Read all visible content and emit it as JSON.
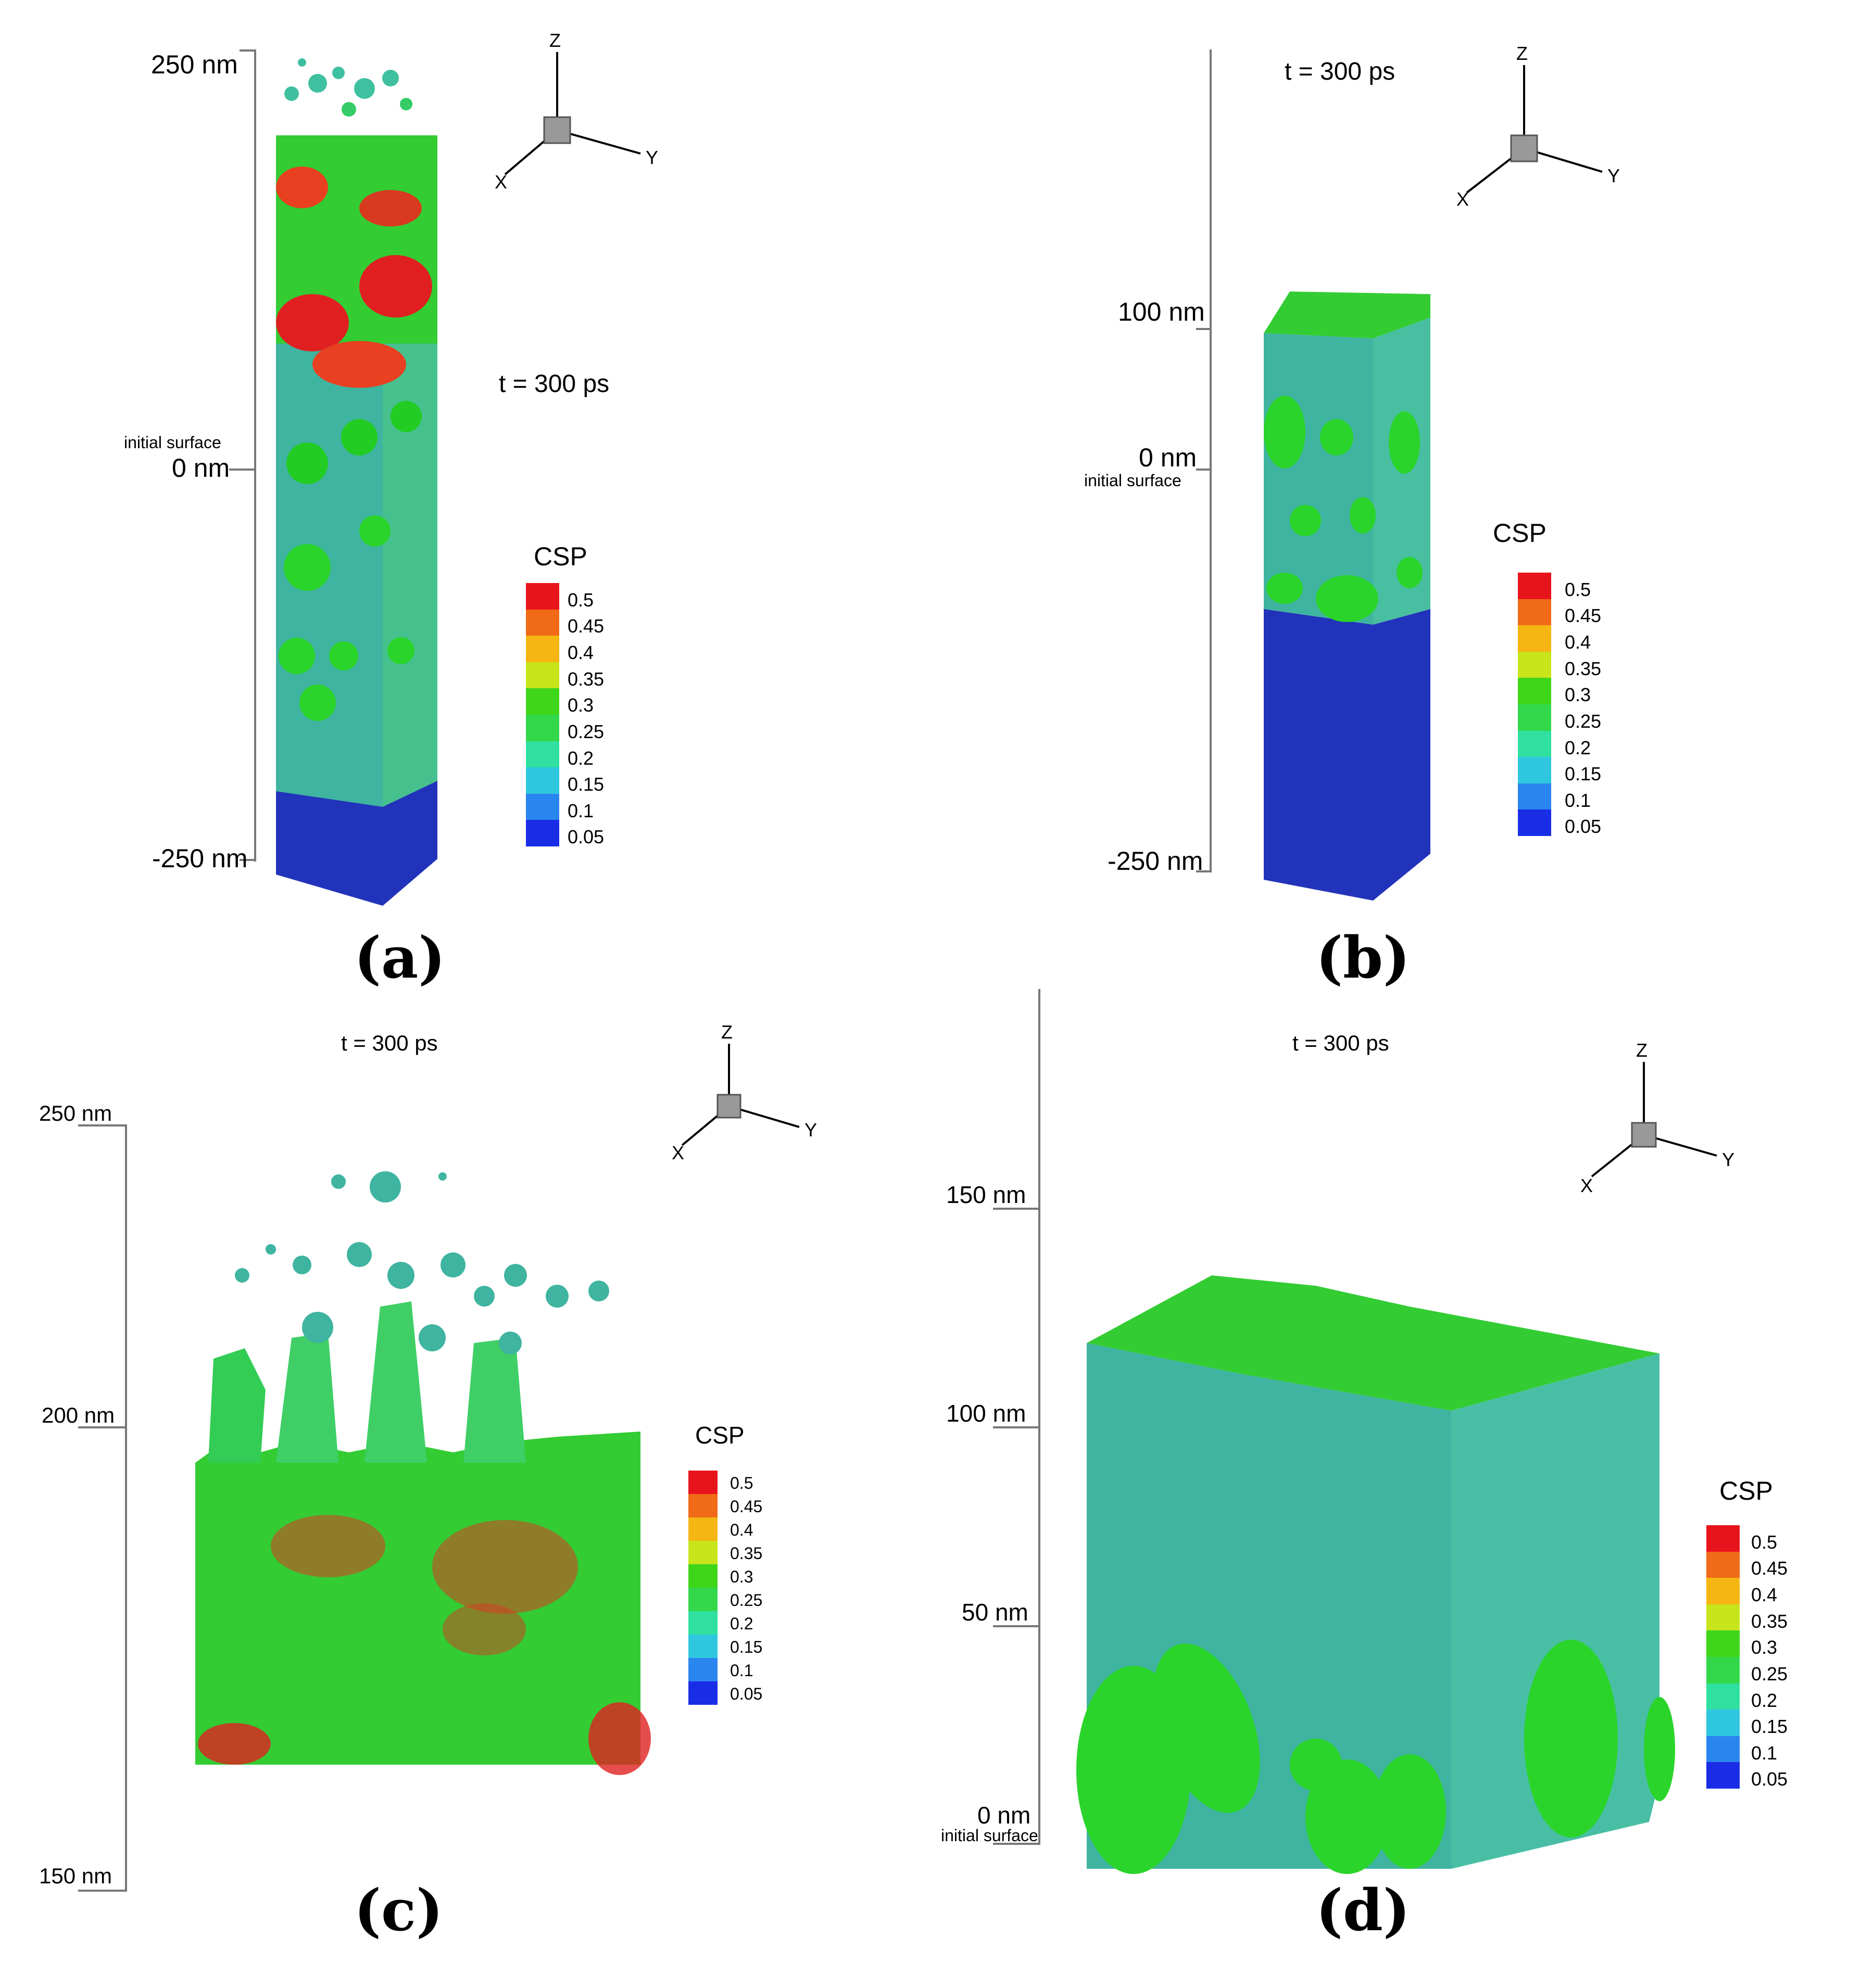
{
  "panels": {
    "a": {
      "label": "(a)",
      "time": "t = 300 ps",
      "axis": {
        "top": "250 nm",
        "mid_note": "initial surface",
        "mid": "0 nm",
        "bottom": "-250 nm"
      }
    },
    "b": {
      "label": "(b)",
      "time": "t = 300 ps",
      "axis": {
        "top": "100 nm",
        "mid": "0 nm",
        "mid_note": "initial surface",
        "bottom": "-250 nm"
      }
    },
    "c": {
      "label": "(c)",
      "time": "t = 300 ps",
      "axis": {
        "top": "250 nm",
        "mid": "200 nm",
        "bottom": "150 nm"
      }
    },
    "d": {
      "label": "(d)",
      "time": "t = 300 ps",
      "axis": {
        "t150": "150 nm",
        "t100": "100 nm",
        "t50": "50 nm",
        "t0": "0 nm",
        "note": "initial surface"
      }
    }
  },
  "triad": {
    "z": "Z",
    "x": "X",
    "y": "Y"
  },
  "colorbar": {
    "title": "CSP",
    "values": [
      "0.5",
      "0.45",
      "0.4",
      "0.35",
      "0.3",
      "0.25",
      "0.2",
      "0.15",
      "0.1",
      "0.05"
    ],
    "colors": [
      "#e8141c",
      "#f06a17",
      "#f5b512",
      "#c8e41a",
      "#3fd619",
      "#33d84a",
      "#2fe0a0",
      "#2fc7e0",
      "#2a86ef",
      "#1a2de6"
    ]
  },
  "material_colors": {
    "green": "#33cc33",
    "teal": "#3fb4a0",
    "blue": "#2233bb",
    "red": "#e02020"
  }
}
